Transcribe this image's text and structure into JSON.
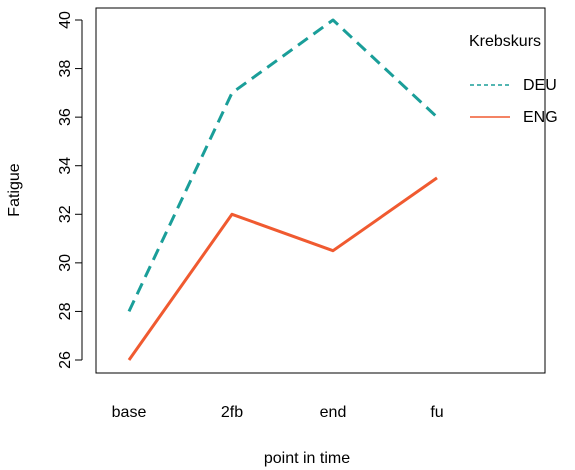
{
  "chart_data": {
    "type": "line",
    "xlabel": "point in time",
    "ylabel": "Fatigue",
    "categories": [
      "base",
      "2fb",
      "end",
      "fu"
    ],
    "ylim": [
      25.3,
      40.3
    ],
    "yticks": [
      26,
      28,
      30,
      32,
      34,
      36,
      38,
      40
    ],
    "grid": false,
    "legend": {
      "title": "Krebskurs",
      "placement": "top-right, outside plot box"
    },
    "series": [
      {
        "name": "DEU",
        "values": [
          28,
          37,
          40,
          36
        ],
        "color": "#1a9e99",
        "dash": "dashed"
      },
      {
        "name": "ENG",
        "values": [
          26,
          32,
          30.5,
          33.5
        ],
        "color": "#f05a30",
        "dash": "solid"
      }
    ]
  }
}
